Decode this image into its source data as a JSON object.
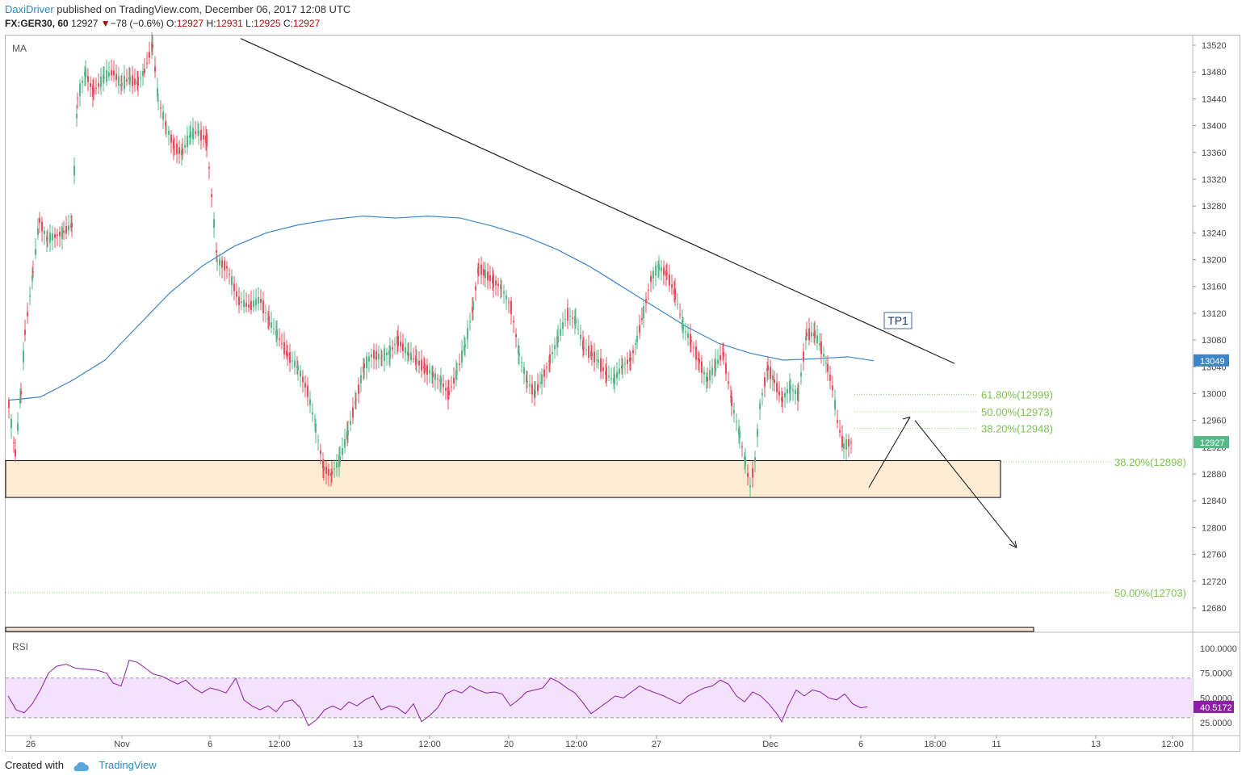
{
  "header": {
    "author": "DaxiDriver",
    "published_text": "published on TradingView.com, December 06, 2017 12:08 UTC",
    "symbol": "FX:GER30, 60",
    "last": "12927",
    "change_arrow": "▼",
    "change": "−78 (−0.6%)",
    "o_label": "O:",
    "o_val": "12927",
    "h_label": "H:",
    "h_val": "12931",
    "l_label": "L:",
    "l_val": "12925",
    "c_label": "C:",
    "c_val": "12927"
  },
  "footer": {
    "created_with": "Created with",
    "brand": "TradingView",
    "logo_icon": "tradingview-cloud-icon"
  },
  "colors": {
    "up": "#53b987",
    "down": "#eb4d5c",
    "ma": "#3d85c6",
    "trendline": "#222222",
    "zone_fill": "#fdebd3",
    "rsi_band": "#f4e1fb",
    "rsi_line": "#8e1ea6",
    "fib": "#7bc34e",
    "last_price_bg": "#53b987",
    "ma_label_bg": "#3d85c6",
    "rsi_label_bg": "#8e1ea6"
  },
  "chart_data": {
    "type": "candlestick",
    "symbol": "FX:GER30",
    "interval": "60",
    "ylim": [
      12640,
      13540
    ],
    "y_ticks": [
      "13520",
      "13480",
      "13440",
      "13400",
      "13360",
      "13320",
      "13280",
      "13240",
      "13200",
      "13160",
      "13120",
      "13080",
      "13040",
      "13000",
      "12960",
      "12920",
      "12880",
      "12840",
      "12800",
      "12760",
      "12720",
      "12680"
    ],
    "x_ticks": [
      "26",
      "Nov",
      "6",
      "12:00",
      "13",
      "12:00",
      "20",
      "12:00",
      "27",
      "Dec",
      "6",
      "18:00",
      "11",
      "13",
      "12:00"
    ],
    "ma_label": "MA",
    "ma_last": "13049",
    "last_price": "12927",
    "ohlc_path": [
      [
        0,
        12985
      ],
      [
        8,
        12910
      ],
      [
        15,
        13000
      ],
      [
        20,
        13090
      ],
      [
        30,
        13180
      ],
      [
        38,
        13260
      ],
      [
        48,
        13230
      ],
      [
        60,
        13235
      ],
      [
        68,
        13240
      ],
      [
        78,
        13250
      ],
      [
        85,
        13440
      ],
      [
        95,
        13480
      ],
      [
        105,
        13450
      ],
      [
        118,
        13470
      ],
      [
        130,
        13480
      ],
      [
        140,
        13460
      ],
      [
        150,
        13470
      ],
      [
        160,
        13465
      ],
      [
        168,
        13480
      ],
      [
        178,
        13520
      ],
      [
        185,
        13440
      ],
      [
        195,
        13400
      ],
      [
        205,
        13370
      ],
      [
        215,
        13360
      ],
      [
        225,
        13385
      ],
      [
        235,
        13390
      ],
      [
        245,
        13380
      ],
      [
        258,
        13200
      ],
      [
        270,
        13190
      ],
      [
        285,
        13140
      ],
      [
        300,
        13130
      ],
      [
        312,
        13140
      ],
      [
        322,
        13110
      ],
      [
        332,
        13090
      ],
      [
        345,
        13060
      ],
      [
        358,
        13040
      ],
      [
        370,
        13005
      ],
      [
        380,
        12950
      ],
      [
        390,
        12890
      ],
      [
        400,
        12880
      ],
      [
        410,
        12900
      ],
      [
        420,
        12940
      ],
      [
        430,
        12990
      ],
      [
        440,
        13040
      ],
      [
        452,
        13060
      ],
      [
        462,
        13055
      ],
      [
        472,
        13060
      ],
      [
        482,
        13080
      ],
      [
        495,
        13060
      ],
      [
        505,
        13050
      ],
      [
        515,
        13040
      ],
      [
        525,
        13030
      ],
      [
        535,
        13020
      ],
      [
        545,
        13000
      ],
      [
        555,
        13030
      ],
      [
        565,
        13070
      ],
      [
        575,
        13130
      ],
      [
        582,
        13190
      ],
      [
        590,
        13180
      ],
      [
        600,
        13170
      ],
      [
        610,
        13160
      ],
      [
        622,
        13130
      ],
      [
        632,
        13060
      ],
      [
        642,
        13020
      ],
      [
        652,
        13000
      ],
      [
        660,
        13020
      ],
      [
        670,
        13050
      ],
      [
        680,
        13080
      ],
      [
        692,
        13120
      ],
      [
        702,
        13110
      ],
      [
        712,
        13070
      ],
      [
        722,
        13060
      ],
      [
        730,
        13050
      ],
      [
        740,
        13030
      ],
      [
        750,
        13020
      ],
      [
        760,
        13040
      ],
      [
        770,
        13050
      ],
      [
        778,
        13080
      ],
      [
        786,
        13120
      ],
      [
        795,
        13170
      ],
      [
        805,
        13190
      ],
      [
        815,
        13180
      ],
      [
        825,
        13150
      ],
      [
        835,
        13100
      ],
      [
        845,
        13080
      ],
      [
        855,
        13050
      ],
      [
        865,
        13020
      ],
      [
        875,
        13040
      ],
      [
        885,
        13060
      ],
      [
        895,
        12990
      ],
      [
        905,
        12940
      ],
      [
        912,
        12900
      ],
      [
        918,
        12860
      ],
      [
        924,
        12900
      ],
      [
        930,
        12980
      ],
      [
        940,
        13040
      ],
      [
        948,
        13020
      ],
      [
        958,
        12990
      ],
      [
        968,
        13010
      ],
      [
        978,
        13000
      ],
      [
        988,
        13090
      ],
      [
        998,
        13090
      ],
      [
        1006,
        13070
      ],
      [
        1014,
        13040
      ],
      [
        1020,
        13010
      ],
      [
        1026,
        12960
      ],
      [
        1034,
        12920
      ],
      [
        1040,
        12925
      ],
      [
        1046,
        12927
      ]
    ],
    "ma_path": [
      [
        0,
        12990
      ],
      [
        40,
        12995
      ],
      [
        80,
        13020
      ],
      [
        120,
        13050
      ],
      [
        160,
        13100
      ],
      [
        200,
        13150
      ],
      [
        240,
        13190
      ],
      [
        280,
        13220
      ],
      [
        320,
        13240
      ],
      [
        360,
        13252
      ],
      [
        400,
        13260
      ],
      [
        440,
        13265
      ],
      [
        480,
        13262
      ],
      [
        520,
        13265
      ],
      [
        560,
        13262
      ],
      [
        600,
        13250
      ],
      [
        640,
        13235
      ],
      [
        680,
        13215
      ],
      [
        720,
        13190
      ],
      [
        760,
        13160
      ],
      [
        800,
        13130
      ],
      [
        840,
        13100
      ],
      [
        880,
        13075
      ],
      [
        920,
        13060
      ],
      [
        960,
        13050
      ],
      [
        1000,
        13052
      ],
      [
        1040,
        13055
      ],
      [
        1072,
        13049
      ]
    ],
    "trendline": {
      "x_from": "Nov 8",
      "y_from": 13530,
      "x_to": "Dec 6 18:00",
      "y_to": 13045
    },
    "tp_label": "TP1",
    "zone": {
      "high": 12900,
      "low": 12845
    },
    "fib_levels": [
      {
        "label": "61.80%(12999)",
        "value": 12999
      },
      {
        "label": "50.00%(12973)",
        "value": 12973
      },
      {
        "label": "38.20%(12948)",
        "value": 12948
      },
      {
        "label": "38.20%(12898)",
        "value": 12898
      },
      {
        "label": "50.00%(12703)",
        "value": 12703
      }
    ],
    "projection": [
      [
        12860,
        "up"
      ],
      [
        12965,
        "peak"
      ],
      [
        12770,
        "down"
      ]
    ],
    "rsi": {
      "label": "RSI",
      "ylim": [
        15,
        110
      ],
      "y_ticks": [
        "100.0000",
        "75.0000",
        "50.0000",
        "25.0000"
      ],
      "band": [
        30,
        70
      ],
      "last": "40.5172",
      "path": [
        [
          0,
          52
        ],
        [
          10,
          38
        ],
        [
          20,
          35
        ],
        [
          30,
          44
        ],
        [
          40,
          58
        ],
        [
          50,
          75
        ],
        [
          60,
          82
        ],
        [
          72,
          84
        ],
        [
          84,
          80
        ],
        [
          96,
          79
        ],
        [
          110,
          78
        ],
        [
          122,
          75
        ],
        [
          130,
          65
        ],
        [
          140,
          62
        ],
        [
          150,
          88
        ],
        [
          160,
          86
        ],
        [
          170,
          80
        ],
        [
          180,
          74
        ],
        [
          190,
          72
        ],
        [
          200,
          68
        ],
        [
          210,
          64
        ],
        [
          220,
          68
        ],
        [
          230,
          60
        ],
        [
          240,
          55
        ],
        [
          250,
          60
        ],
        [
          260,
          58
        ],
        [
          270,
          55
        ],
        [
          282,
          70
        ],
        [
          292,
          48
        ],
        [
          302,
          42
        ],
        [
          312,
          38
        ],
        [
          322,
          42
        ],
        [
          332,
          36
        ],
        [
          342,
          46
        ],
        [
          352,
          48
        ],
        [
          362,
          40
        ],
        [
          372,
          22
        ],
        [
          382,
          28
        ],
        [
          392,
          38
        ],
        [
          402,
          42
        ],
        [
          412,
          38
        ],
        [
          422,
          46
        ],
        [
          432,
          42
        ],
        [
          442,
          48
        ],
        [
          452,
          52
        ],
        [
          462,
          38
        ],
        [
          472,
          42
        ],
        [
          482,
          40
        ],
        [
          492,
          34
        ],
        [
          502,
          44
        ],
        [
          512,
          26
        ],
        [
          522,
          32
        ],
        [
          532,
          40
        ],
        [
          542,
          54
        ],
        [
          552,
          58
        ],
        [
          562,
          55
        ],
        [
          572,
          62
        ],
        [
          582,
          58
        ],
        [
          592,
          55
        ],
        [
          602,
          56
        ],
        [
          612,
          54
        ],
        [
          622,
          42
        ],
        [
          632,
          48
        ],
        [
          642,
          56
        ],
        [
          652,
          58
        ],
        [
          662,
          60
        ],
        [
          672,
          70
        ],
        [
          682,
          66
        ],
        [
          692,
          60
        ],
        [
          702,
          55
        ],
        [
          712,
          45
        ],
        [
          722,
          34
        ],
        [
          732,
          40
        ],
        [
          742,
          46
        ],
        [
          752,
          52
        ],
        [
          762,
          50
        ],
        [
          772,
          56
        ],
        [
          782,
          62
        ],
        [
          792,
          58
        ],
        [
          802,
          55
        ],
        [
          812,
          52
        ],
        [
          822,
          48
        ],
        [
          832,
          44
        ],
        [
          842,
          52
        ],
        [
          852,
          56
        ],
        [
          862,
          60
        ],
        [
          872,
          62
        ],
        [
          882,
          68
        ],
        [
          892,
          64
        ],
        [
          902,
          52
        ],
        [
          912,
          46
        ],
        [
          922,
          56
        ],
        [
          932,
          52
        ],
        [
          942,
          44
        ],
        [
          952,
          34
        ],
        [
          958,
          26
        ],
        [
          966,
          42
        ],
        [
          976,
          58
        ],
        [
          986,
          52
        ],
        [
          996,
          58
        ],
        [
          1006,
          56
        ],
        [
          1016,
          50
        ],
        [
          1026,
          48
        ],
        [
          1036,
          54
        ],
        [
          1046,
          44
        ],
        [
          1056,
          40
        ],
        [
          1064,
          41
        ]
      ]
    }
  }
}
